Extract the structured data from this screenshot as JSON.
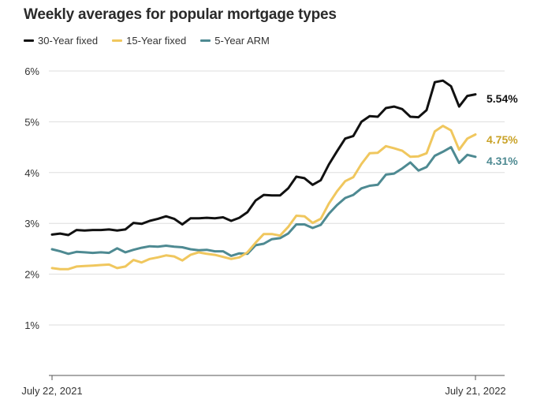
{
  "colors": {
    "series_30": "#111111",
    "series_15": "#f0c75e",
    "series_arm": "#4e8a92",
    "label_15": "#c9a227",
    "label_arm": "#4e8a92",
    "grid": "#dddddd",
    "axis": "#555555"
  },
  "chart_data": {
    "type": "line",
    "title": "Weekly averages for popular mortgage types",
    "xlabel": "",
    "ylabel": "",
    "x_tick_labels": [
      "July 22, 2021",
      "July 21, 2022"
    ],
    "y_ticks": [
      1,
      2,
      3,
      4,
      5,
      6
    ],
    "y_tick_labels": [
      "1%",
      "2%",
      "3%",
      "4%",
      "5%",
      "6%"
    ],
    "ylim": [
      0.3,
      6.3
    ],
    "grid": true,
    "legend_position": "top-left",
    "end_labels": [
      "5.54%",
      "4.75%",
      "4.31%"
    ],
    "series": [
      {
        "name": "30-Year fixed",
        "values": [
          2.78,
          2.8,
          2.77,
          2.87,
          2.86,
          2.87,
          2.87,
          2.88,
          2.86,
          2.88,
          3.01,
          2.99,
          3.05,
          3.09,
          3.14,
          3.09,
          2.98,
          3.1,
          3.1,
          3.11,
          3.1,
          3.12,
          3.05,
          3.11,
          3.22,
          3.45,
          3.56,
          3.55,
          3.55,
          3.69,
          3.92,
          3.89,
          3.76,
          3.85,
          4.16,
          4.42,
          4.67,
          4.72,
          5.0,
          5.11,
          5.1,
          5.27,
          5.3,
          5.25,
          5.1,
          5.09,
          5.23,
          5.78,
          5.81,
          5.7,
          5.3,
          5.51,
          5.54
        ]
      },
      {
        "name": "15-Year fixed",
        "values": [
          2.12,
          2.1,
          2.1,
          2.15,
          2.16,
          2.17,
          2.18,
          2.19,
          2.12,
          2.15,
          2.28,
          2.23,
          2.3,
          2.33,
          2.37,
          2.35,
          2.27,
          2.38,
          2.43,
          2.4,
          2.38,
          2.34,
          2.3,
          2.33,
          2.43,
          2.62,
          2.79,
          2.79,
          2.76,
          2.93,
          3.15,
          3.14,
          3.01,
          3.09,
          3.39,
          3.63,
          3.83,
          3.91,
          4.17,
          4.38,
          4.39,
          4.52,
          4.48,
          4.43,
          4.31,
          4.32,
          4.38,
          4.81,
          4.92,
          4.83,
          4.45,
          4.67,
          4.75
        ]
      },
      {
        "name": "5-Year ARM",
        "values": [
          2.49,
          2.45,
          2.4,
          2.44,
          2.43,
          2.42,
          2.43,
          2.42,
          2.51,
          2.43,
          2.48,
          2.52,
          2.55,
          2.54,
          2.56,
          2.54,
          2.53,
          2.49,
          2.47,
          2.48,
          2.45,
          2.45,
          2.36,
          2.41,
          2.4,
          2.57,
          2.6,
          2.69,
          2.71,
          2.8,
          2.98,
          2.98,
          2.91,
          2.97,
          3.19,
          3.36,
          3.5,
          3.56,
          3.69,
          3.74,
          3.76,
          3.96,
          3.98,
          4.08,
          4.2,
          4.04,
          4.11,
          4.33,
          4.41,
          4.5,
          4.19,
          4.35,
          4.31
        ]
      }
    ]
  }
}
